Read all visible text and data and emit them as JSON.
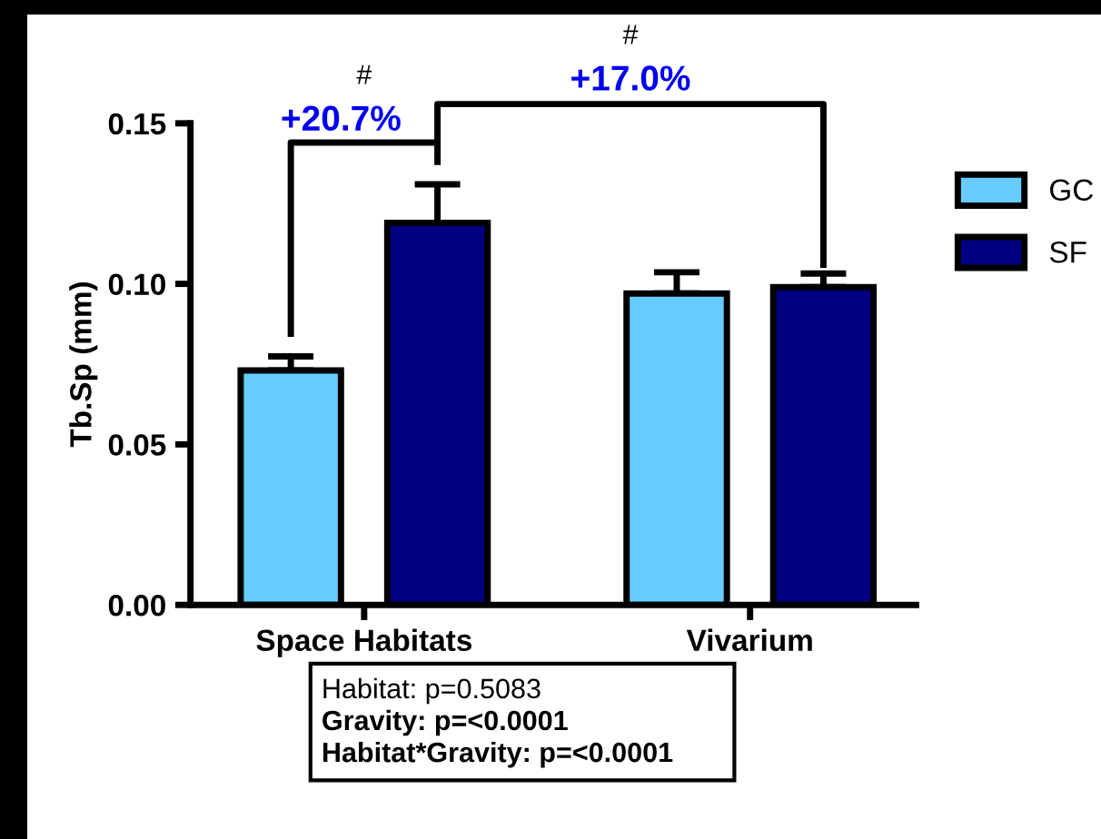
{
  "chart_data": {
    "type": "bar",
    "ylabel": "Tb.Sp (mm)",
    "categories": [
      "Space Habitats",
      "Vivarium"
    ],
    "series": [
      {
        "name": "GC",
        "color": "#66ccff",
        "values": [
          0.073,
          0.097
        ],
        "errors": [
          0.0044,
          0.0066
        ]
      },
      {
        "name": "SF",
        "color": "#000080",
        "values": [
          0.119,
          0.099
        ],
        "errors": [
          0.012,
          0.0042
        ]
      }
    ],
    "ylim": [
      0,
      0.15
    ],
    "yticks": [
      {
        "value": 0,
        "label": "0.00"
      },
      {
        "value": 0.05,
        "label": "0.05"
      },
      {
        "value": 0.1,
        "label": "0.10"
      },
      {
        "value": 0.15,
        "label": "0.15"
      }
    ],
    "grid": false,
    "legend": "top right",
    "annotations": [
      "#",
      "+20.7%",
      "#",
      "+17.0%",
      "Habitat: p=0.5083",
      "Gravity: p=<0.0001",
      "Habitat*Gravity: p=<0.0001"
    ]
  }
}
